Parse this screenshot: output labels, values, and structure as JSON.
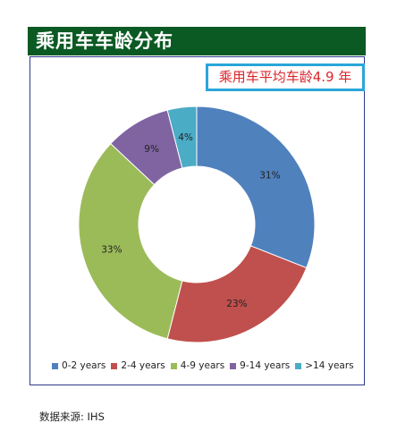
{
  "title": "乘用车车龄分布",
  "callout": "乘用车平均车龄4.9 年",
  "source": "数据来源: IHS",
  "chart_data": {
    "type": "pie",
    "variant": "donut",
    "categories": [
      "0-2 years",
      "2-4 years",
      "4-9 years",
      "9-14 years",
      ">14 years"
    ],
    "values": [
      31,
      23,
      33,
      9,
      4
    ],
    "value_labels": [
      "31%",
      "23%",
      "33%",
      "9%",
      "4%"
    ],
    "colors": [
      "#4f81bd",
      "#c0504d",
      "#9bbb59",
      "#8064a2",
      "#4bacc6"
    ],
    "legend_position": "bottom"
  }
}
